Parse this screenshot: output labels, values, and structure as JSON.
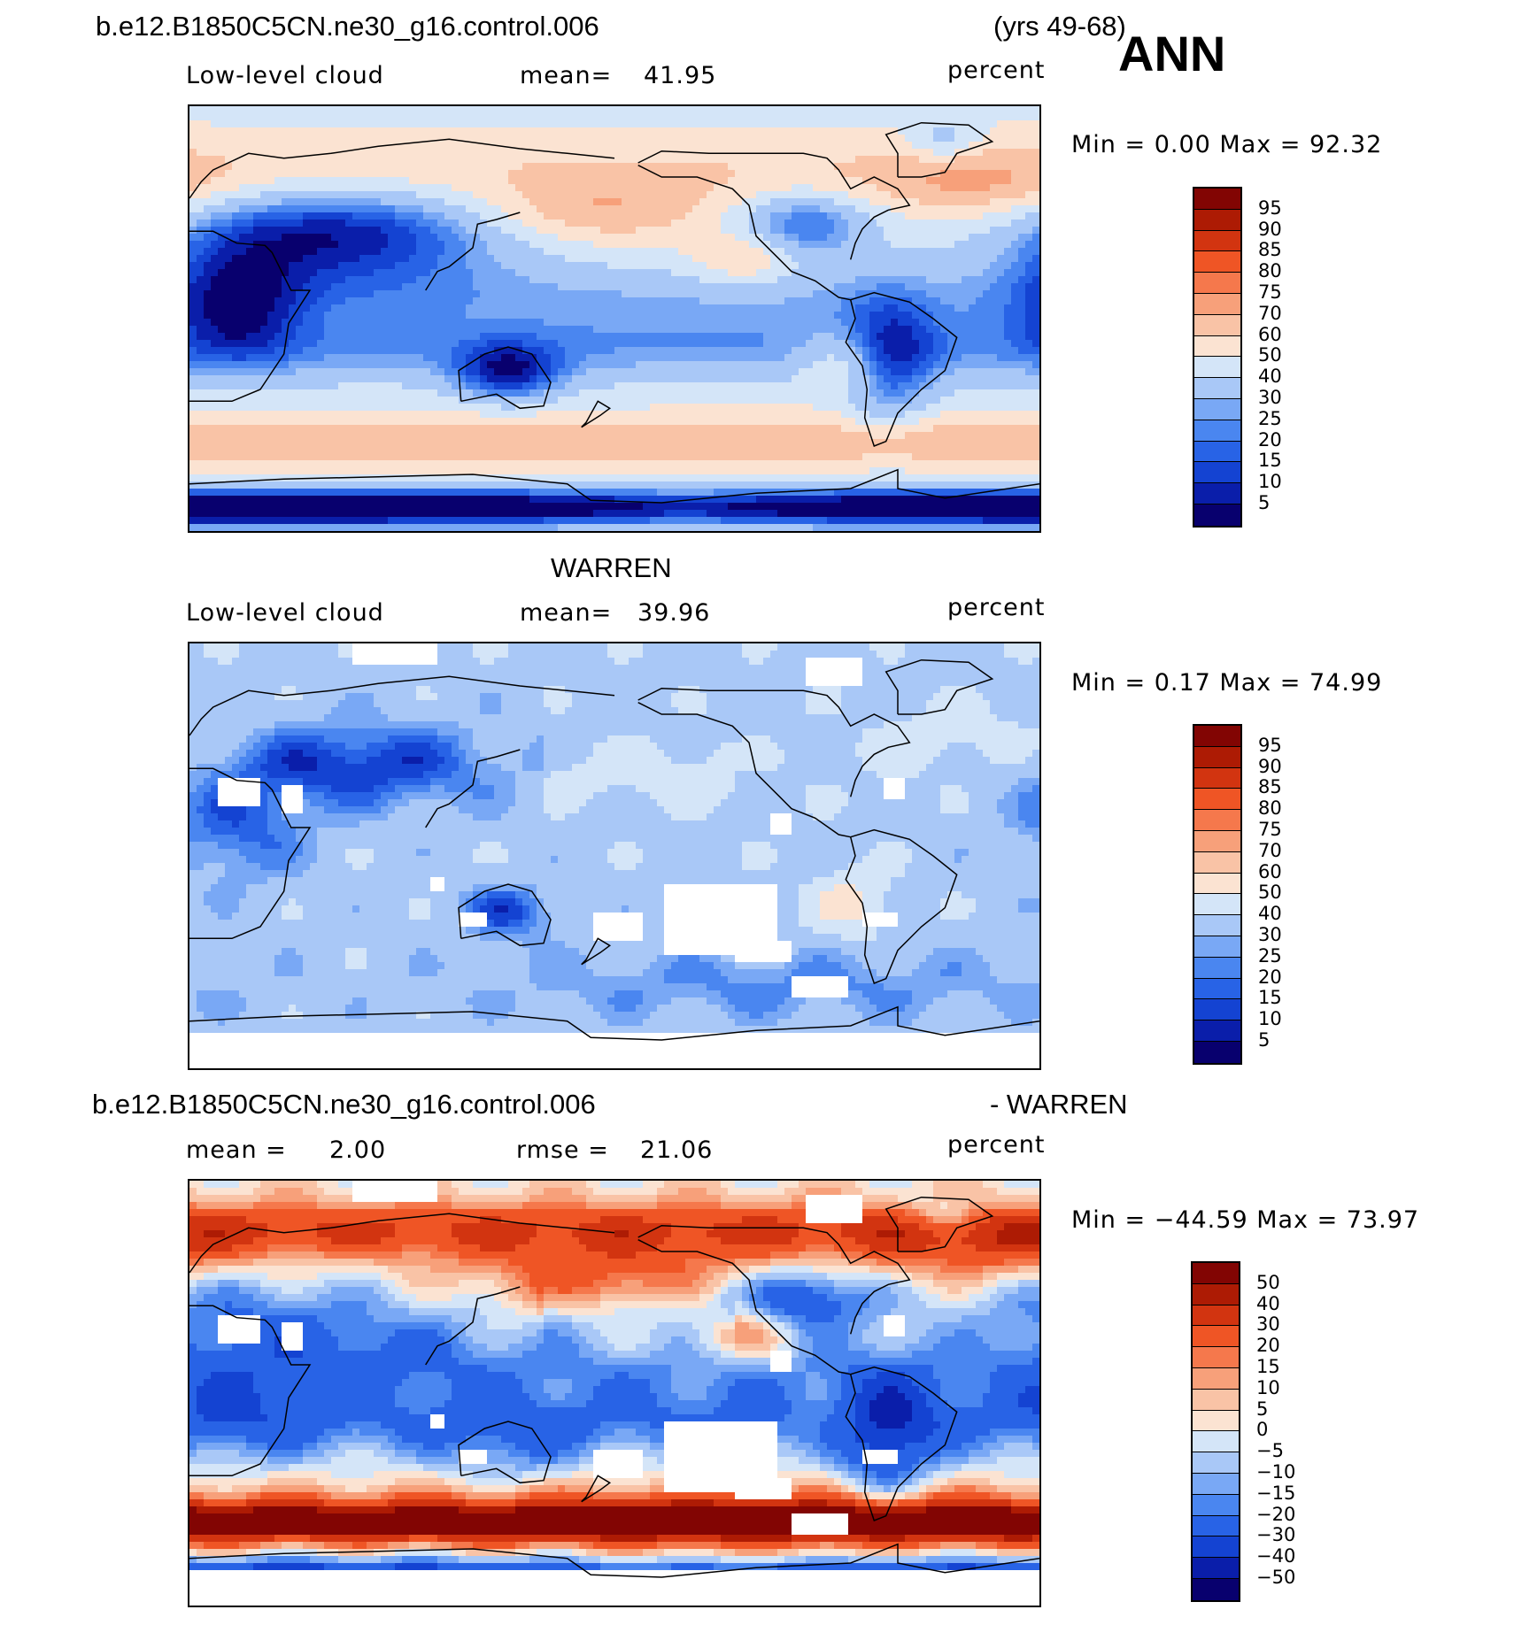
{
  "header": {
    "case_name": "b.e12.B1850C5CN.ne30_g16.control.006",
    "years": "(yrs 49-68)",
    "season": "ANN"
  },
  "colors": {
    "levels_palette": [
      "#08006e",
      "#0a1eaa",
      "#1443d2",
      "#2863e6",
      "#4a86f0",
      "#79a8f5",
      "#a9c8f7",
      "#d4e5f8",
      "#fbe3d2",
      "#f9c3a6",
      "#f7a07a",
      "#f5784c",
      "#ef5525",
      "#d23410",
      "#ad1b04",
      "#820503"
    ],
    "missing": "#ffffff",
    "coast": "#000000"
  },
  "chart_data": [
    {
      "type": "heatmap",
      "panel": "model",
      "field_label": "Low-level cloud",
      "mean_label": "mean=",
      "mean_value": "41.95",
      "units": "percent",
      "minmax_text": "Min =     0.00  Max  =    92.32",
      "min": 0.0,
      "max": 92.32,
      "colorbar_levels": [
        "95",
        "90",
        "85",
        "80",
        "75",
        "70",
        "60",
        "50",
        "40",
        "30",
        "25",
        "20",
        "15",
        "10",
        "5"
      ],
      "xlim": [
        0,
        360
      ],
      "ylim": [
        -90,
        90
      ]
    },
    {
      "type": "heatmap",
      "panel": "obs",
      "title": "WARREN",
      "field_label": "Low-level cloud",
      "mean_label": "mean=",
      "mean_value": "39.96",
      "units": "percent",
      "minmax_text": "Min =     0.17  Max  =    74.99",
      "min": 0.17,
      "max": 74.99,
      "colorbar_levels": [
        "95",
        "90",
        "85",
        "80",
        "75",
        "70",
        "60",
        "50",
        "40",
        "30",
        "25",
        "20",
        "15",
        "10",
        "5"
      ],
      "xlim": [
        0,
        360
      ],
      "ylim": [
        -90,
        90
      ]
    },
    {
      "type": "heatmap",
      "panel": "difference",
      "title_left": "b.e12.B1850C5CN.ne30_g16.control.006",
      "title_right": "- WARREN",
      "mean_label": "mean  =",
      "mean_value": "2.00",
      "rmse_label": "rmse  =",
      "rmse_value": "21.06",
      "units": "percent",
      "minmax_text": "Min  = −44.59  Max  =    73.97",
      "min": -44.59,
      "max": 73.97,
      "colorbar_levels": [
        "50",
        "40",
        "30",
        "20",
        "15",
        "10",
        "5",
        "0",
        "−5",
        "−10",
        "−15",
        "−20",
        "−30",
        "−40",
        "−50"
      ],
      "xlim": [
        0,
        360
      ],
      "ylim": [
        -90,
        90
      ]
    }
  ]
}
